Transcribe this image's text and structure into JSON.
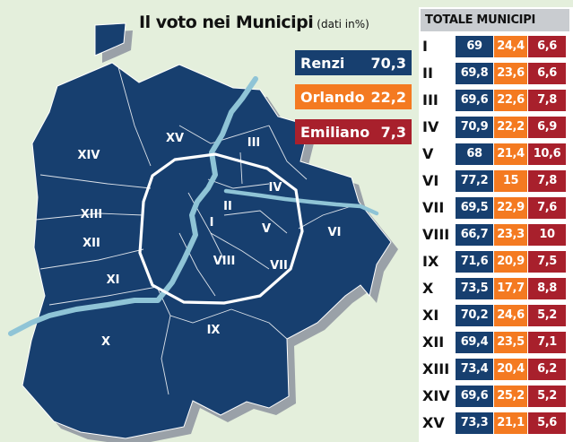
{
  "title": "Il voto nei Municipi",
  "subtitle": "(dati in%)",
  "legend": [
    {
      "name": "Renzi",
      "value": "70,3",
      "color": "#173f6f"
    },
    {
      "name": "Orlando",
      "value": "22,2",
      "color": "#f47a21"
    },
    {
      "name": "Emiliano",
      "value": "7,3",
      "color": "#a8202c"
    }
  ],
  "colors": {
    "background": "#e4efdc",
    "district": "#173f6f",
    "district_shadow": "#9aa1a8",
    "river": "#8fc4d6",
    "ring_road": "#ffffff"
  },
  "map_labels": [
    "I",
    "II",
    "III",
    "IV",
    "V",
    "VI",
    "VII",
    "VIII",
    "IX",
    "X",
    "XI",
    "XII",
    "XIII",
    "XIV",
    "XV"
  ],
  "table": {
    "header": "TOTALE MUNICIPI",
    "rows": [
      {
        "municipio": "I",
        "renzi": "69",
        "orlando": "24,4",
        "emiliano": "6,6"
      },
      {
        "municipio": "II",
        "renzi": "69,8",
        "orlando": "23,6",
        "emiliano": "6,6"
      },
      {
        "municipio": "III",
        "renzi": "69,6",
        "orlando": "22,6",
        "emiliano": "7,8"
      },
      {
        "municipio": "IV",
        "renzi": "70,9",
        "orlando": "22,2",
        "emiliano": "6,9"
      },
      {
        "municipio": "V",
        "renzi": "68",
        "orlando": "21,4",
        "emiliano": "10,6"
      },
      {
        "municipio": "VI",
        "renzi": "77,2",
        "orlando": "15",
        "emiliano": "7,8"
      },
      {
        "municipio": "VII",
        "renzi": "69,5",
        "orlando": "22,9",
        "emiliano": "7,6"
      },
      {
        "municipio": "VIII",
        "renzi": "66,7",
        "orlando": "23,3",
        "emiliano": "10"
      },
      {
        "municipio": "IX",
        "renzi": "71,6",
        "orlando": "20,9",
        "emiliano": "7,5"
      },
      {
        "municipio": "X",
        "renzi": "73,5",
        "orlando": "17,7",
        "emiliano": "8,8"
      },
      {
        "municipio": "XI",
        "renzi": "70,2",
        "orlando": "24,6",
        "emiliano": "5,2"
      },
      {
        "municipio": "XII",
        "renzi": "69,4",
        "orlando": "23,5",
        "emiliano": "7,1"
      },
      {
        "municipio": "XIII",
        "renzi": "73,4",
        "orlando": "20,4",
        "emiliano": "6,2"
      },
      {
        "municipio": "XIV",
        "renzi": "69,6",
        "orlando": "25,2",
        "emiliano": "5,2"
      },
      {
        "municipio": "XV",
        "renzi": "73,3",
        "orlando": "21,1",
        "emiliano": "5,6"
      }
    ]
  }
}
